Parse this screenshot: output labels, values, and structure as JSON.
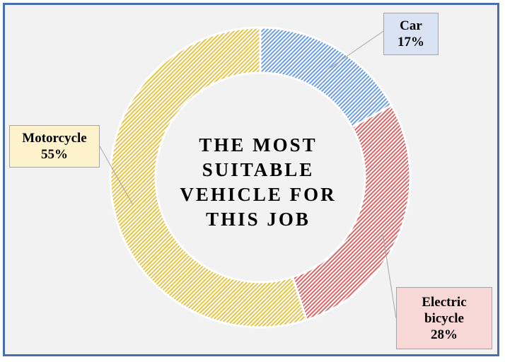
{
  "chart_data": {
    "type": "pie",
    "variant": "doughnut",
    "title_lines": [
      "THE MOST",
      "SUITABLE",
      "VEHICLE FOR",
      "THIS JOB"
    ],
    "slices": [
      {
        "name": "Car",
        "value": 17,
        "value_label": "17%",
        "color": "#6d9eeb",
        "label_lines": [
          "Car",
          "17%"
        ]
      },
      {
        "name": "Electric bicycle",
        "value": 28,
        "value_label": "28%",
        "color": "#e06666",
        "label_lines": [
          "Electric",
          "bicycle",
          "28%"
        ]
      },
      {
        "name": "Motorcycle",
        "value": 55,
        "value_label": "55%",
        "color": "#e8c44a",
        "label_lines": [
          "Motorcycle",
          "55%"
        ]
      }
    ],
    "fill_pattern": "diagonal-hatch",
    "start_angle_deg": 0,
    "direction": "clockwise"
  }
}
